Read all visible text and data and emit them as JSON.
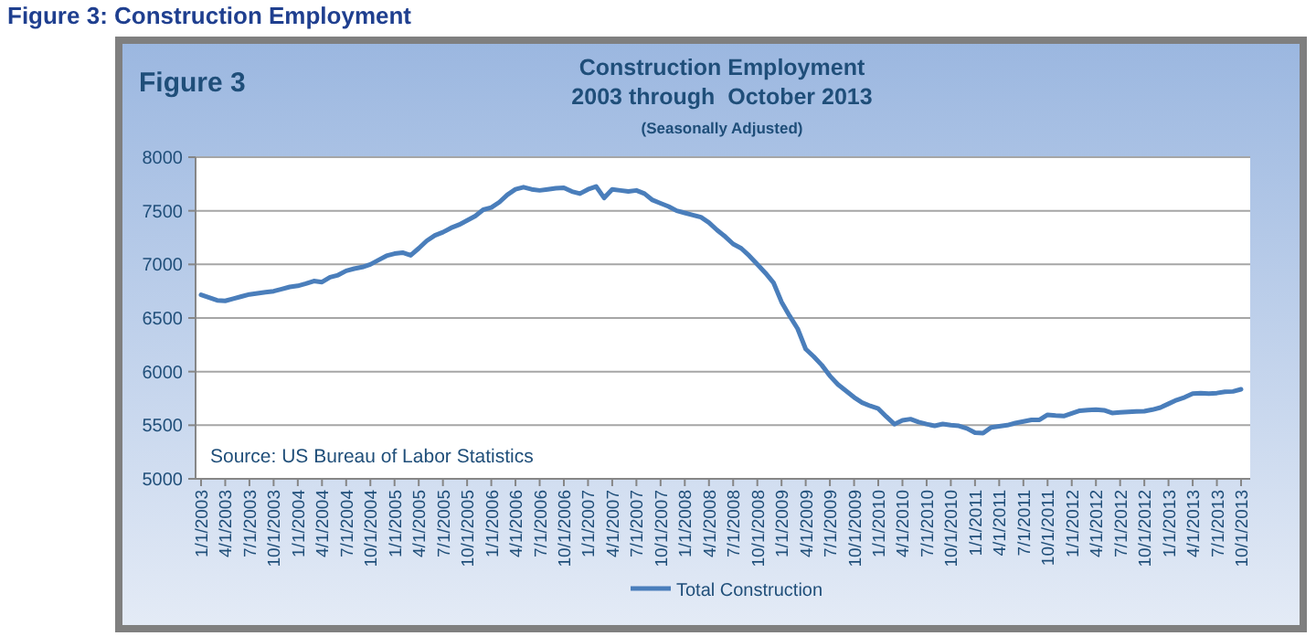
{
  "chart_data": {
    "type": "line",
    "title": "Construction Employment\n2003 through  October 2013",
    "subtitle": "(Seasonally Adjusted)",
    "annotations": [
      "Figure 3: Construction Employment",
      "Figure 3",
      "Source: US Bureau of Labor Statistics"
    ],
    "categories": [
      "1/1/2003",
      null,
      null,
      "4/1/2003",
      null,
      null,
      "7/1/2003",
      null,
      null,
      "10/1/2003",
      null,
      null,
      "1/1/2004",
      null,
      null,
      "4/1/2004",
      null,
      null,
      "7/1/2004",
      null,
      null,
      "10/1/2004",
      null,
      null,
      "1/1/2005",
      null,
      null,
      "4/1/2005",
      null,
      null,
      "7/1/2005",
      null,
      null,
      "10/1/2005",
      null,
      null,
      "1/1/2006",
      null,
      null,
      "4/1/2006",
      null,
      null,
      "7/1/2006",
      null,
      null,
      "10/1/2006",
      null,
      null,
      "1/1/2007",
      null,
      null,
      "4/1/2007",
      null,
      null,
      "7/1/2007",
      null,
      null,
      "10/1/2007",
      null,
      null,
      "1/1/2008",
      null,
      null,
      "4/1/2008",
      null,
      null,
      "7/1/2008",
      null,
      null,
      "10/1/2008",
      null,
      null,
      "1/1/2009",
      null,
      null,
      "4/1/2009",
      null,
      null,
      "7/1/2009",
      null,
      null,
      "10/1/2009",
      null,
      null,
      "1/1/2010",
      null,
      null,
      "4/1/2010",
      null,
      null,
      "7/1/2010",
      null,
      null,
      "10/1/2010",
      null,
      null,
      "1/1/2011",
      null,
      null,
      "4/1/2011",
      null,
      null,
      "7/1/2011",
      null,
      null,
      "10/1/2011",
      null,
      null,
      "1/1/2012",
      null,
      null,
      "4/1/2012",
      null,
      null,
      "7/1/2012",
      null,
      null,
      "10/1/2012",
      null,
      null,
      "1/1/2013",
      null,
      null,
      "4/1/2013",
      null,
      null,
      "7/1/2013",
      null,
      null,
      "10/1/2013"
    ],
    "series": [
      {
        "name": "Total Construction",
        "color": "#4a7ebb",
        "values": [
          6716,
          6690,
          6665,
          6660,
          6680,
          6700,
          6720,
          6730,
          6740,
          6750,
          6770,
          6790,
          6800,
          6820,
          6845,
          6835,
          6880,
          6900,
          6940,
          6960,
          6975,
          7000,
          7040,
          7080,
          7100,
          7110,
          7085,
          7150,
          7220,
          7270,
          7300,
          7340,
          7370,
          7410,
          7450,
          7510,
          7530,
          7580,
          7650,
          7700,
          7720,
          7700,
          7690,
          7700,
          7710,
          7715,
          7680,
          7660,
          7700,
          7727,
          7620,
          7700,
          7690,
          7680,
          7690,
          7660,
          7600,
          7570,
          7540,
          7500,
          7480,
          7460,
          7440,
          7390,
          7320,
          7260,
          7190,
          7150,
          7080,
          7000,
          6920,
          6830,
          6650,
          6520,
          6400,
          6210,
          6140,
          6060,
          5960,
          5880,
          5820,
          5760,
          5710,
          5680,
          5655,
          5580,
          5510,
          5545,
          5557,
          5530,
          5510,
          5494,
          5511,
          5500,
          5494,
          5470,
          5430,
          5426,
          5480,
          5490,
          5500,
          5520,
          5535,
          5550,
          5550,
          5597,
          5590,
          5585,
          5610,
          5635,
          5642,
          5645,
          5640,
          5614,
          5620,
          5625,
          5628,
          5631,
          5645,
          5665,
          5700,
          5735,
          5760,
          5795,
          5800,
          5795,
          5800,
          5812,
          5815,
          5835
        ]
      }
    ],
    "ylim": [
      5000,
      8000
    ],
    "yticks": [
      5000,
      5500,
      6000,
      6500,
      7000,
      7500,
      8000
    ],
    "grid": "y",
    "legend": "bottom",
    "marker": "none",
    "line_style": "solid"
  }
}
